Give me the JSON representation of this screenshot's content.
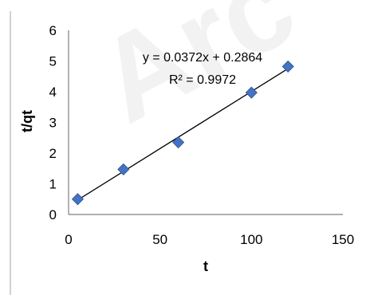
{
  "chart_data": {
    "type": "scatter",
    "title": "",
    "xlabel": "t",
    "ylabel": "t/qt",
    "xlim": [
      0,
      150
    ],
    "ylim": [
      0,
      6
    ],
    "xticks": [
      "0",
      "50",
      "100",
      "150"
    ],
    "yticks": [
      "0",
      "1",
      "2",
      "3",
      "4",
      "5",
      "6"
    ],
    "grid": false,
    "legend": "none",
    "series": [
      {
        "marker": "diamond",
        "color": "#4472C4",
        "points": [
          {
            "x": 5,
            "y": 0.5
          },
          {
            "x": 30,
            "y": 1.47
          },
          {
            "x": 60,
            "y": 2.35
          },
          {
            "x": 100,
            "y": 3.97
          },
          {
            "x": 120,
            "y": 4.82
          }
        ]
      }
    ],
    "trendline": {
      "type": "linear",
      "slope": 0.0372,
      "intercept": 0.2864,
      "x_range": [
        5,
        120
      ],
      "color": "#000000"
    },
    "annotations": {
      "equation": "y = 0.0372x + 0.2864",
      "r_squared": "R² = 0.9972"
    },
    "watermark": "Arc",
    "colors": {
      "marker_fill": "#4472C4",
      "marker_stroke": "#2F528F",
      "axis": "#7F7F7F",
      "frame_line": "#A6A6A6"
    }
  }
}
